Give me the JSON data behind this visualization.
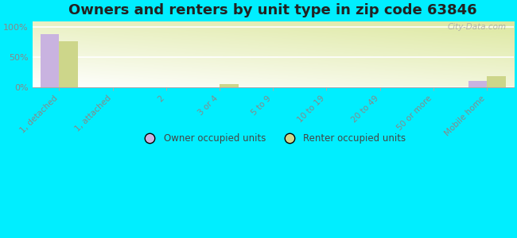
{
  "title": "Owners and renters by unit type in zip code 63846",
  "categories": [
    "1, detached",
    "1, attached",
    "2",
    "3 or 4",
    "5 to 9",
    "10 to 19",
    "20 to 49",
    "50 or more",
    "Mobile home"
  ],
  "owner_values": [
    88,
    0,
    0,
    0,
    0,
    0,
    0,
    0,
    10
  ],
  "renter_values": [
    76,
    0,
    0,
    4,
    0,
    0,
    0,
    0,
    18
  ],
  "owner_color": "#c9b3e0",
  "renter_color": "#cdd68a",
  "background_color": "#00eeff",
  "yticks": [
    0,
    50,
    100
  ],
  "ylim": [
    0,
    110
  ],
  "bar_width": 0.35,
  "watermark": "City-Data.com",
  "tick_color": "#888888",
  "grid_color": "#cccccc",
  "title_fontsize": 13
}
